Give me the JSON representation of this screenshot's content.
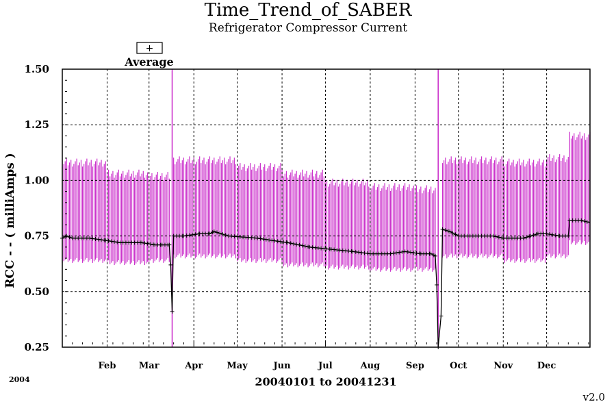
{
  "chart_data": {
    "type": "line",
    "title": "Time_Trend_of_SABER",
    "subtitle": "Refrigerator Compressor Current",
    "xlabel": "20040101 to 20041231",
    "ylabel": "RCC - - ( milliAmps )",
    "year_label": "2004",
    "version_label": "v2.0",
    "legend": {
      "symbol": "+",
      "label": "Average",
      "placement": "top-left"
    },
    "xlim": [
      "2004-01-01",
      "2004-12-31"
    ],
    "ylim": [
      0.25,
      1.5
    ],
    "yticks": [
      "0.25",
      "0.50",
      "0.75",
      "1.00",
      "1.25",
      "1.50"
    ],
    "ytick_values": [
      0.25,
      0.5,
      0.75,
      1.0,
      1.25,
      1.5
    ],
    "xticks": [
      {
        "label": "Feb",
        "date": "2004-02-01"
      },
      {
        "label": "Mar",
        "date": "2004-03-01"
      },
      {
        "label": "Apr",
        "date": "2004-04-01"
      },
      {
        "label": "May",
        "date": "2004-05-01"
      },
      {
        "label": "Jun",
        "date": "2004-06-01"
      },
      {
        "label": "Jul",
        "date": "2004-07-01"
      },
      {
        "label": "Aug",
        "date": "2004-08-01"
      },
      {
        "label": "Sep",
        "date": "2004-09-01"
      },
      {
        "label": "Oct",
        "date": "2004-10-01"
      },
      {
        "label": "Nov",
        "date": "2004-11-01"
      },
      {
        "label": "Dec",
        "date": "2004-12-01"
      }
    ],
    "grid": true,
    "colors": {
      "range": "#cc33cc",
      "average": "#000000",
      "grid": "#000000"
    },
    "series": [
      {
        "name": "Average",
        "style": "line-with-plus-markers",
        "points": [
          [
            "2004-01-01",
            0.74
          ],
          [
            "2004-01-04",
            0.75
          ],
          [
            "2004-01-08",
            0.74
          ],
          [
            "2004-01-20",
            0.74
          ],
          [
            "2004-01-31",
            0.73
          ],
          [
            "2004-02-10",
            0.72
          ],
          [
            "2004-02-25",
            0.72
          ],
          [
            "2004-03-05",
            0.71
          ],
          [
            "2004-03-10",
            0.71
          ],
          [
            "2004-03-15",
            0.71
          ],
          [
            "2004-03-16",
            0.62
          ],
          [
            "2004-03-17",
            0.41
          ],
          [
            "2004-03-18",
            0.75
          ],
          [
            "2004-03-25",
            0.75
          ],
          [
            "2004-04-05",
            0.76
          ],
          [
            "2004-04-12",
            0.76
          ],
          [
            "2004-04-15",
            0.77
          ],
          [
            "2004-04-25",
            0.75
          ],
          [
            "2004-05-15",
            0.74
          ],
          [
            "2004-05-25",
            0.73
          ],
          [
            "2004-06-05",
            0.72
          ],
          [
            "2004-06-20",
            0.7
          ],
          [
            "2004-07-05",
            0.69
          ],
          [
            "2004-07-20",
            0.68
          ],
          [
            "2004-08-01",
            0.67
          ],
          [
            "2004-08-15",
            0.67
          ],
          [
            "2004-08-25",
            0.68
          ],
          [
            "2004-09-05",
            0.67
          ],
          [
            "2004-09-12",
            0.67
          ],
          [
            "2004-09-15",
            0.66
          ],
          [
            "2004-09-16",
            0.53
          ],
          [
            "2004-09-17",
            0.25
          ],
          [
            "2004-09-19",
            0.39
          ],
          [
            "2004-09-20",
            0.78
          ],
          [
            "2004-09-25",
            0.77
          ],
          [
            "2004-10-01",
            0.75
          ],
          [
            "2004-10-25",
            0.75
          ],
          [
            "2004-11-01",
            0.74
          ],
          [
            "2004-11-15",
            0.74
          ],
          [
            "2004-11-20",
            0.75
          ],
          [
            "2004-11-25",
            0.76
          ],
          [
            "2004-12-01",
            0.76
          ],
          [
            "2004-12-10",
            0.75
          ],
          [
            "2004-12-16",
            0.75
          ],
          [
            "2004-12-17",
            0.82
          ],
          [
            "2004-12-25",
            0.82
          ],
          [
            "2004-12-31",
            0.81
          ]
        ]
      },
      {
        "name": "Range",
        "style": "vertical-bars",
        "segments": [
          {
            "from": "2004-01-01",
            "to": "2004-01-31",
            "low": 0.64,
            "high": 1.08
          },
          {
            "from": "2004-02-01",
            "to": "2004-02-29",
            "low": 0.63,
            "high": 1.03
          },
          {
            "from": "2004-03-01",
            "to": "2004-03-15",
            "low": 0.64,
            "high": 1.02
          },
          {
            "from": "2004-03-18",
            "to": "2004-04-30",
            "low": 0.66,
            "high": 1.09
          },
          {
            "from": "2004-05-01",
            "to": "2004-05-31",
            "low": 0.64,
            "high": 1.06
          },
          {
            "from": "2004-06-01",
            "to": "2004-06-30",
            "low": 0.62,
            "high": 1.03
          },
          {
            "from": "2004-07-01",
            "to": "2004-07-31",
            "low": 0.61,
            "high": 0.99
          },
          {
            "from": "2004-08-01",
            "to": "2004-08-31",
            "low": 0.6,
            "high": 0.97
          },
          {
            "from": "2004-09-01",
            "to": "2004-09-15",
            "low": 0.6,
            "high": 0.96
          },
          {
            "from": "2004-09-20",
            "to": "2004-10-31",
            "low": 0.66,
            "high": 1.09
          },
          {
            "from": "2004-11-01",
            "to": "2004-11-30",
            "low": 0.64,
            "high": 1.08
          },
          {
            "from": "2004-12-01",
            "to": "2004-12-16",
            "low": 0.66,
            "high": 1.1
          },
          {
            "from": "2004-12-17",
            "to": "2004-12-31",
            "low": 0.72,
            "high": 1.2
          }
        ],
        "spikes": [
          {
            "date": "2004-03-17",
            "low": 0.25,
            "high": 1.5
          },
          {
            "date": "2004-09-17",
            "low": 0.25,
            "high": 1.5
          }
        ]
      }
    ]
  }
}
